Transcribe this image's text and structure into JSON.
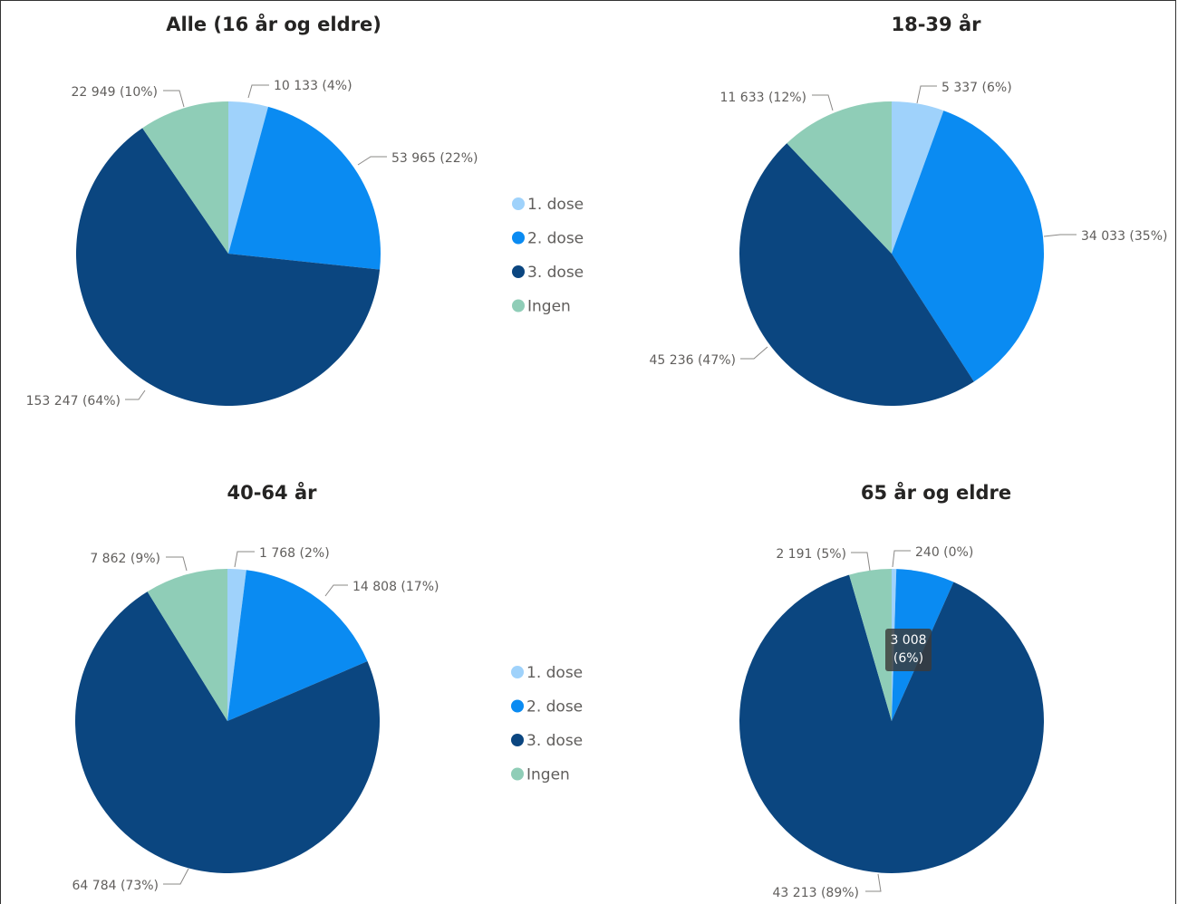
{
  "colors": {
    "1. dose": "#9fd2fb",
    "2. dose": "#0a8bf2",
    "3. dose": "#0b4680",
    "Ingen": "#8fcdb7"
  },
  "legends": [
    {
      "items": [
        "1. dose",
        "2. dose",
        "3. dose",
        "Ingen"
      ]
    },
    {
      "items": [
        "1. dose",
        "2. dose",
        "3. dose",
        "Ingen"
      ]
    }
  ],
  "chart_data": [
    {
      "type": "pie",
      "title": "Alle (16 år og eldre)",
      "categories": [
        "1. dose",
        "2. dose",
        "3. dose",
        "Ingen"
      ],
      "values": [
        10133,
        53965,
        153247,
        22949
      ],
      "labels": [
        "10 133 (4%)",
        "53 965 (22%)",
        "153 247 (64%)",
        "22 949 (10%)"
      ]
    },
    {
      "type": "pie",
      "title": "18-39 år",
      "categories": [
        "1. dose",
        "2. dose",
        "3. dose",
        "Ingen"
      ],
      "values": [
        5337,
        34033,
        45236,
        11633
      ],
      "labels": [
        "5 337 (6%)",
        "34 033 (35%)",
        "45 236 (47%)",
        "11 633 (12%)"
      ]
    },
    {
      "type": "pie",
      "title": "40-64 år",
      "categories": [
        "1. dose",
        "2. dose",
        "3. dose",
        "Ingen"
      ],
      "values": [
        1768,
        14808,
        64784,
        7862
      ],
      "labels": [
        "1 768 (2%)",
        "14 808 (17%)",
        "64 784 (73%)",
        "7 862 (9%)"
      ]
    },
    {
      "type": "pie",
      "title": "65 år og eldre",
      "categories": [
        "1. dose",
        "2. dose",
        "3. dose",
        "Ingen"
      ],
      "values": [
        240,
        3008,
        43213,
        2191
      ],
      "labels": [
        "240 (0%)",
        "3 008 (6%)",
        "43 213 (89%)",
        "2 191 (5%)"
      ],
      "tooltip": {
        "line1": "3 008",
        "line2": "(6%)"
      }
    }
  ]
}
